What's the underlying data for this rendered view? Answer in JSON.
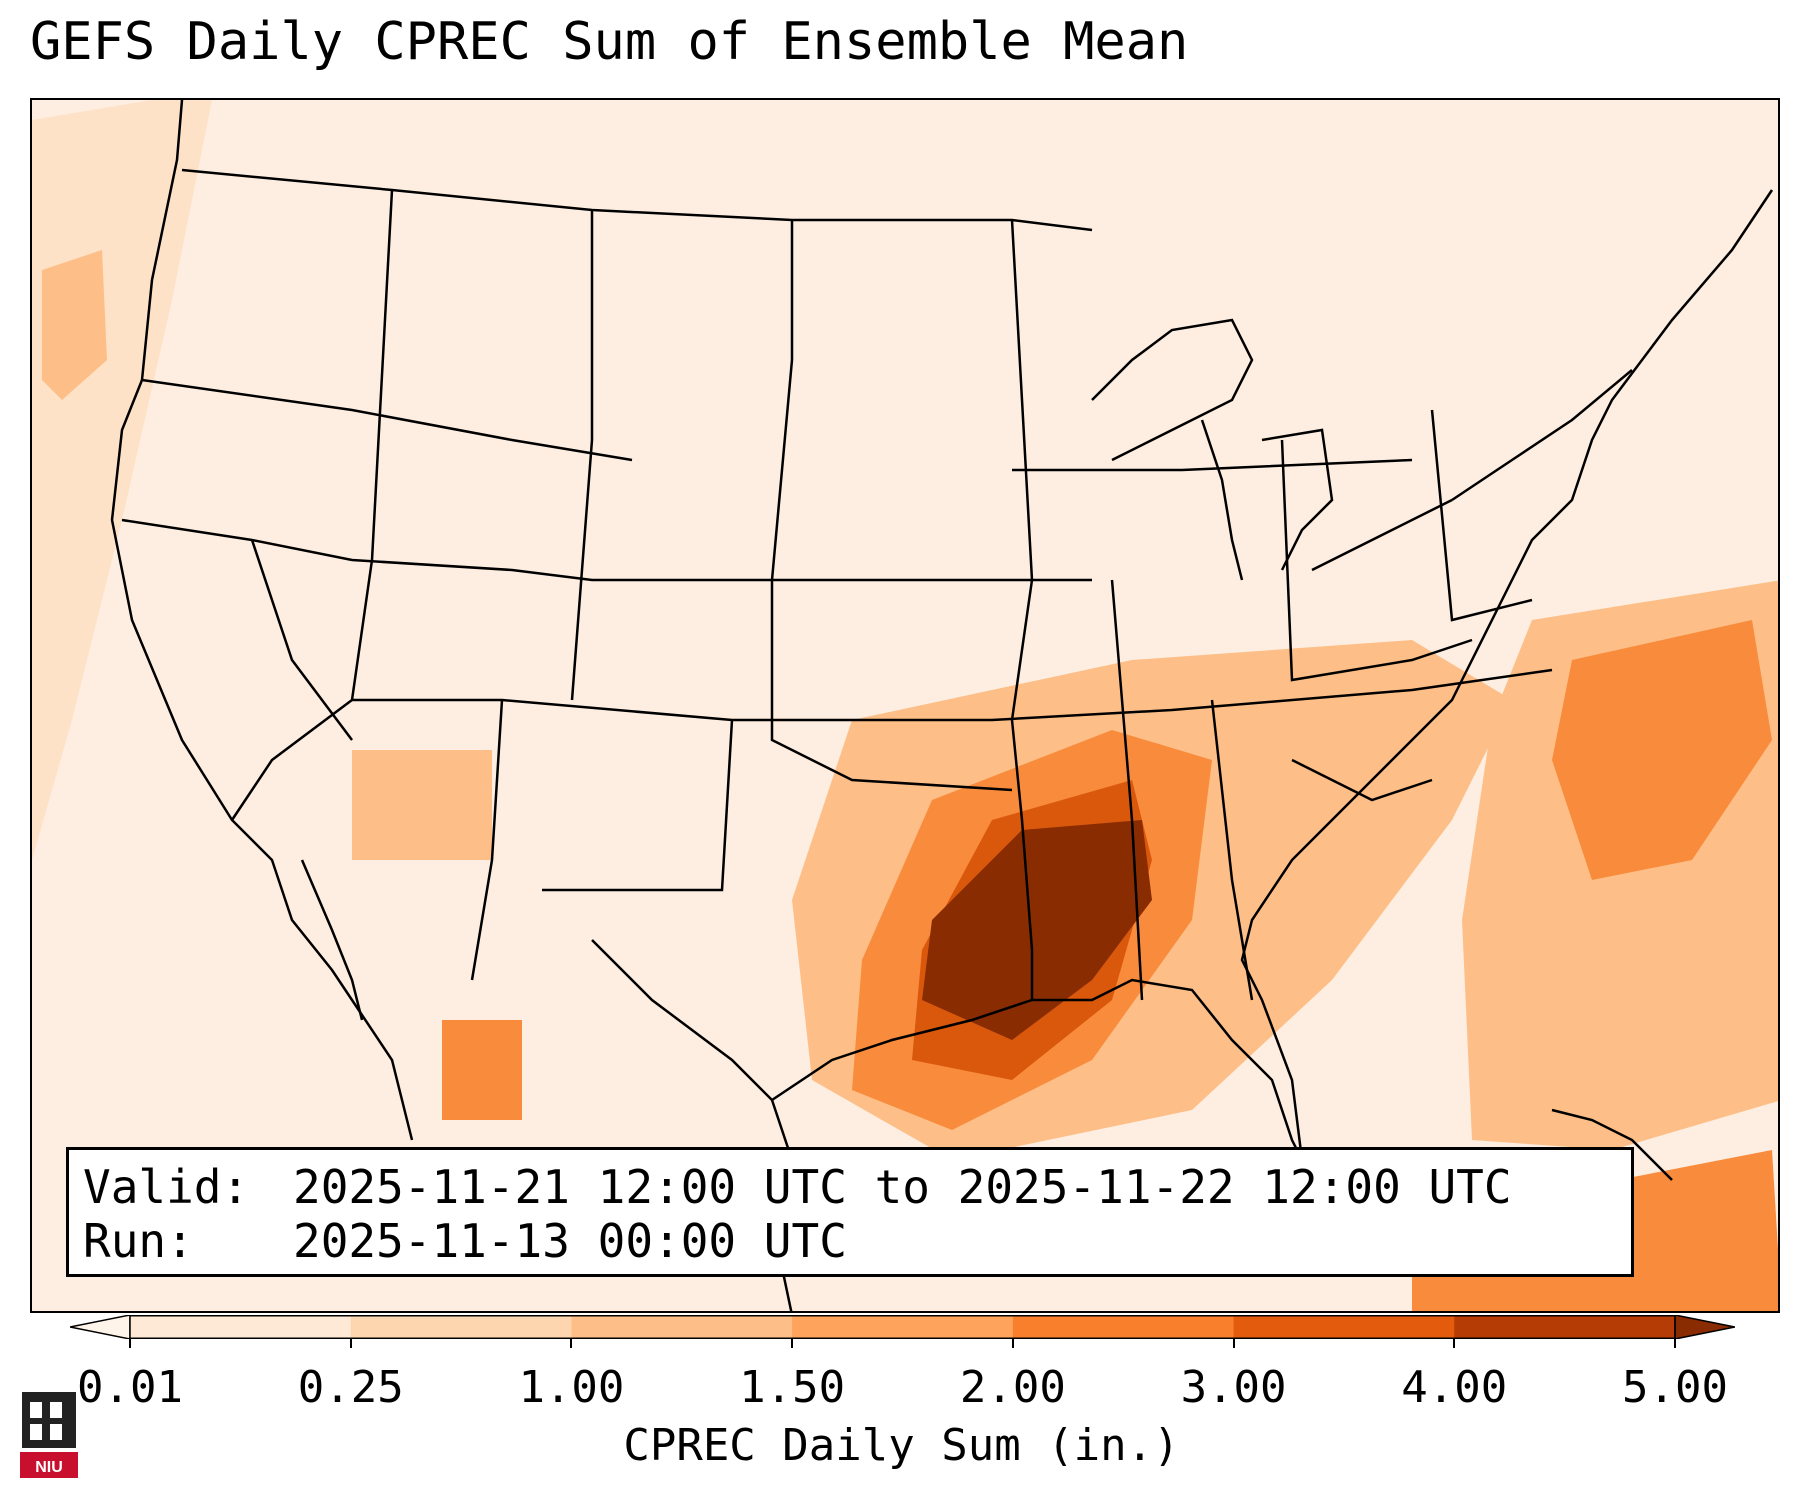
{
  "title": "GEFS Daily CPREC Sum of Ensemble Mean",
  "info": {
    "valid_key": "Valid:",
    "valid_value": "2025-11-21 12:00 UTC to 2025-11-22 12:00 UTC",
    "run_key": "Run:",
    "run_value": "2025-11-13 00:00 UTC"
  },
  "colorbar": {
    "label": "CPREC Daily Sum (in.)",
    "ticks": [
      "0.01",
      "0.25",
      "1.00",
      "1.50",
      "2.00",
      "3.00",
      "4.00",
      "5.00"
    ],
    "colors": [
      "#fff4ea",
      "#fde9d6",
      "#fdd6b0",
      "#fdbf87",
      "#fda35c",
      "#f97f2c",
      "#e35b0c",
      "#b53c04",
      "#8a2c02"
    ],
    "extend": "both"
  },
  "map": {
    "region": "Continental United States",
    "colors": {
      "background": "#fdeee1",
      "low": "#fff4ea",
      "light": "#fde2c8",
      "medium": "#fdbf87",
      "high": "#f98b3c",
      "very_high": "#d9580c",
      "max": "#8a2c02",
      "boundaries": "#000000"
    }
  },
  "logo": {
    "text": "NIU",
    "color": "#c8102e"
  }
}
